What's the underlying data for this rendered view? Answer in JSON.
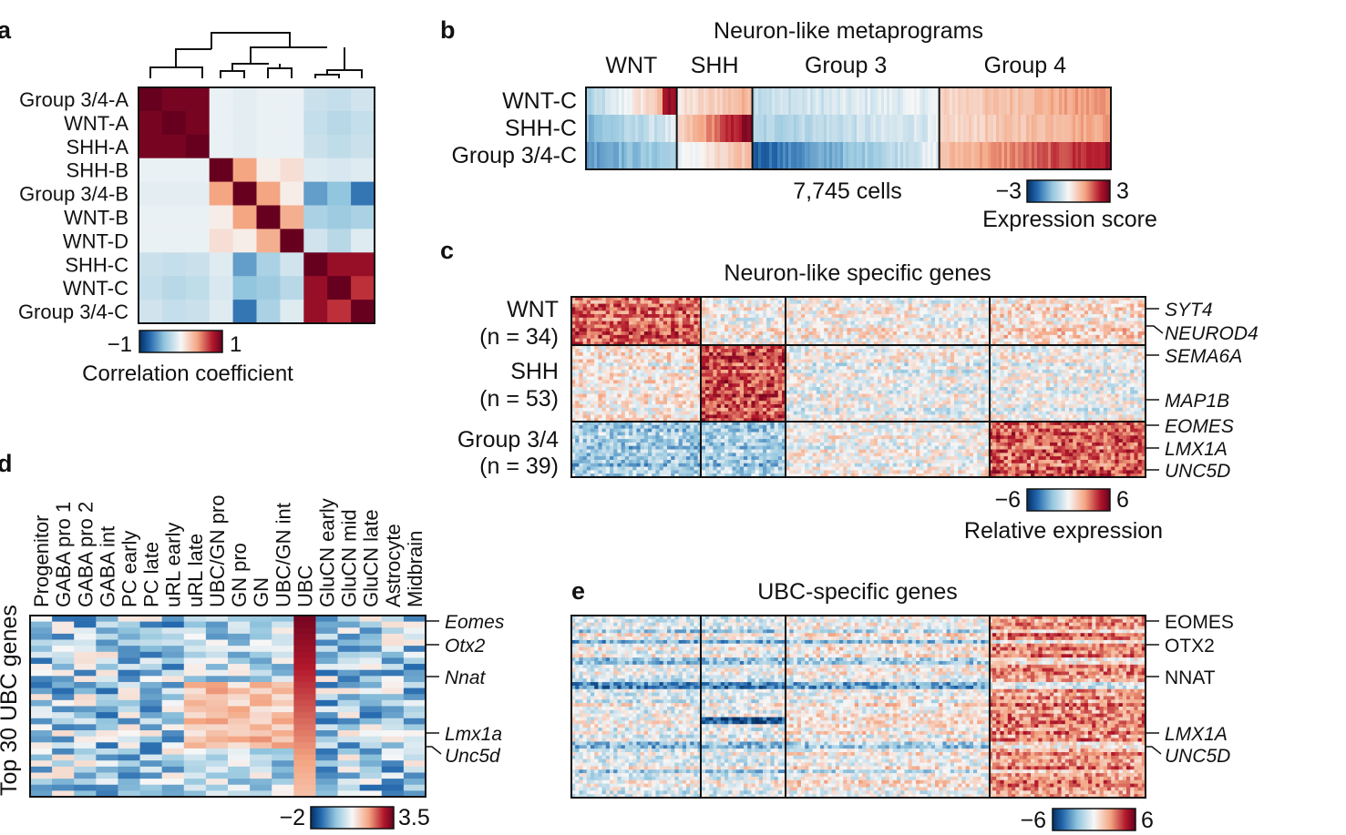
{
  "panels": {
    "a": {
      "letter": "a",
      "rows": [
        "Group 3/4-A",
        "WNT-A",
        "SHH-A",
        "SHH-B",
        "Group 3/4-B",
        "WNT-B",
        "WNT-D",
        "SHH-C",
        "WNT-C",
        "Group 3/4-C"
      ],
      "matrix": [
        [
          1,
          0.95,
          0.95,
          -0.05,
          -0.08,
          -0.05,
          -0.05,
          -0.18,
          -0.2,
          -0.15
        ],
        [
          0.95,
          1,
          0.95,
          -0.05,
          -0.08,
          -0.05,
          -0.05,
          -0.2,
          -0.25,
          -0.2
        ],
        [
          0.95,
          0.95,
          1,
          -0.05,
          -0.08,
          -0.05,
          -0.05,
          -0.18,
          -0.22,
          -0.18
        ],
        [
          -0.05,
          -0.05,
          -0.05,
          1,
          0.4,
          0.05,
          0.12,
          -0.1,
          -0.12,
          -0.1
        ],
        [
          -0.08,
          -0.08,
          -0.08,
          0.4,
          1,
          0.4,
          0.05,
          -0.55,
          -0.4,
          -0.7
        ],
        [
          -0.05,
          -0.05,
          -0.05,
          0.05,
          0.4,
          1,
          0.35,
          -0.3,
          -0.35,
          -0.3
        ],
        [
          -0.05,
          -0.05,
          -0.05,
          0.12,
          0.05,
          0.35,
          1,
          -0.15,
          -0.25,
          -0.1
        ],
        [
          -0.18,
          -0.2,
          -0.18,
          -0.1,
          -0.55,
          -0.3,
          -0.15,
          1,
          0.85,
          0.85
        ],
        [
          -0.2,
          -0.25,
          -0.22,
          -0.12,
          -0.4,
          -0.35,
          -0.25,
          0.85,
          1,
          0.7
        ],
        [
          -0.15,
          -0.2,
          -0.18,
          -0.1,
          -0.7,
          -0.3,
          -0.1,
          0.85,
          0.7,
          1
        ]
      ],
      "colorbar_min": "−1",
      "colorbar_max": "1",
      "colorbar_title": "Correlation coefficient"
    },
    "b": {
      "letter": "b",
      "title": "Neuron-like metaprograms",
      "groups": [
        "WNT",
        "SHH",
        "Group 3",
        "Group 4"
      ],
      "group_fraction": [
        0.173,
        0.144,
        0.356,
        0.327
      ],
      "rows": [
        "WNT-C",
        "SHH-C",
        "Group 3/4-C"
      ],
      "cells_label": "7,745 cells",
      "colorbar_min": "−3",
      "colorbar_max": "3",
      "colorbar_title": "Expression score"
    },
    "c": {
      "letter": "c",
      "title": "Neuron-like specific genes",
      "row_groups": [
        {
          "name": "WNT",
          "n": "(n = 34)"
        },
        {
          "name": "SHH",
          "n": "(n = 53)"
        },
        {
          "name": "Group 3/4",
          "n": "(n = 39)"
        }
      ],
      "genes": [
        "SYT4",
        "NEUROD4",
        "SEMA6A",
        "MAP1B",
        "EOMES",
        "LMX1A",
        "UNC5D"
      ],
      "colorbar_min": "−6",
      "colorbar_max": "6",
      "colorbar_title": "Relative expression"
    },
    "d": {
      "letter": "d",
      "ylabel": "Top 30 UBC genes",
      "columns": [
        "Progenitor",
        "GABA pro 1",
        "GABA pro 2",
        "GABA int",
        "PC early",
        "PC late",
        "uRL early",
        "uRL late",
        "UBC/GN pro",
        "GN pro",
        "GN",
        "UBC/GN int",
        "UBC",
        "GluCN early",
        "GluCN mid",
        "GluCN late",
        "Astrocyte",
        "Midbrain"
      ],
      "genes": [
        "Eomes",
        "Otx2",
        "Nnat",
        "Lmx1a",
        "Unc5d"
      ],
      "colorbar_min": "−2",
      "colorbar_max": "3.5"
    },
    "e": {
      "letter": "e",
      "title": "UBC-specific genes",
      "genes": [
        "EOMES",
        "OTX2",
        "NNAT",
        "LMX1A",
        "UNC5D"
      ],
      "colorbar_min": "−6",
      "colorbar_max": "6"
    }
  }
}
